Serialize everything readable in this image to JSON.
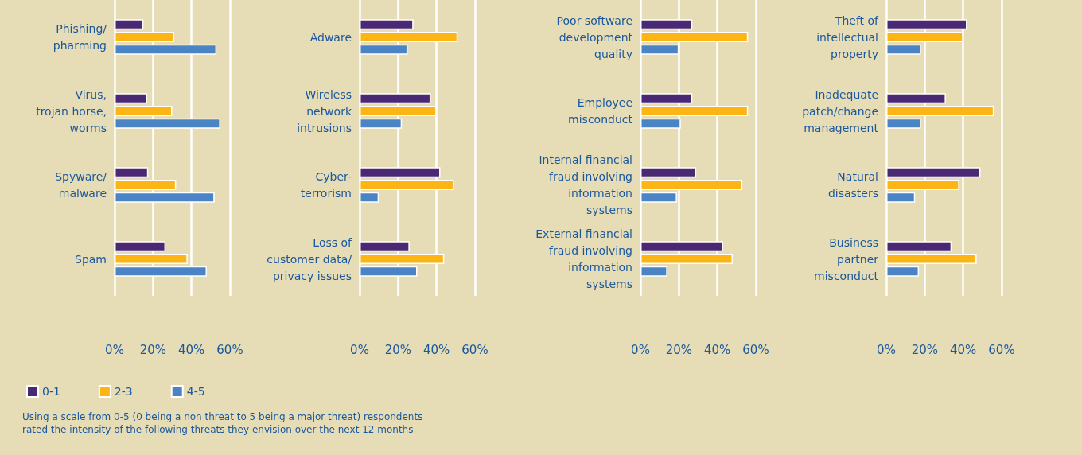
{
  "chart_data": [
    {
      "type": "bar",
      "orientation": "horizontal",
      "categories": [
        "Phishing/\npharming",
        "Virus,\ntrojan horse,\nworms",
        "Spyware/\nmalware",
        "Spam"
      ],
      "series": [
        {
          "name": "0-1",
          "color": "#4b2873",
          "values": [
            15,
            17,
            17.5,
            26.5
          ]
        },
        {
          "name": "2-3",
          "color": "#fdb515",
          "values": [
            31,
            30,
            32,
            38
          ]
        },
        {
          "name": "4-5",
          "color": "#4a84c4",
          "values": [
            53,
            55,
            52,
            48
          ]
        }
      ],
      "xlim": [
        0,
        60
      ],
      "xticks": [
        {
          "value": 0,
          "label": "0%"
        },
        {
          "value": 20,
          "label": "20%"
        },
        {
          "value": 40,
          "label": "40%"
        },
        {
          "value": 60,
          "label": "60%"
        }
      ],
      "grid": "x",
      "legend": "bottom left",
      "annotations": [
        "Using a scale from 0-5 (0 being a non threat to 5 being a major threat) respondents rated the intensity of the following threats they envision over the next 12 months"
      ]
    },
    {
      "type": "bar",
      "orientation": "horizontal",
      "categories": [
        "Adware",
        "Wireless\nnetwork\nintrusions",
        "Cyber-\nterrorism",
        "Loss of\ncustomer data/\nprivacy issues"
      ],
      "series": [
        {
          "color": "#4b2873",
          "values": [
            28,
            37,
            42,
            26
          ]
        },
        {
          "color": "#fdb515",
          "values": [
            51,
            40,
            49,
            44
          ]
        },
        {
          "color": "#4a84c4",
          "values": [
            25,
            22,
            10,
            30
          ]
        }
      ],
      "xlim": [
        0,
        60
      ],
      "xticks": [
        {
          "value": 0,
          "label": "0%"
        },
        {
          "value": 20,
          "label": "20%"
        },
        {
          "value": 40,
          "label": "40%"
        },
        {
          "value": 60,
          "label": "60%"
        }
      ],
      "grid": "x"
    },
    {
      "type": "bar",
      "orientation": "horizontal",
      "categories": [
        "Poor software\ndevelopment\nquality",
        "Employee\nmisconduct",
        "Internal financial\nfraud involving\ninformation\nsystems",
        "External financial\nfraud involving\ninformation\nsystems"
      ],
      "series": [
        {
          "color": "#4b2873",
          "values": [
            27,
            27,
            29,
            43
          ]
        },
        {
          "color": "#fdb515",
          "values": [
            56,
            56,
            53,
            48
          ]
        },
        {
          "color": "#4a84c4",
          "values": [
            20,
            21,
            19,
            14
          ]
        }
      ],
      "xlim": [
        0,
        60
      ],
      "xticks": [
        {
          "value": 0,
          "label": "0%"
        },
        {
          "value": 20,
          "label": "20%"
        },
        {
          "value": 40,
          "label": "40%"
        },
        {
          "value": 60,
          "label": "60%"
        }
      ],
      "grid": "x"
    },
    {
      "type": "bar",
      "orientation": "horizontal",
      "categories": [
        "Theft of\nintellectual\nproperty",
        "Inadequate\npatch/change\nmanagement",
        "Natural\ndisasters",
        "Business\npartner\nmisconduct"
      ],
      "series": [
        {
          "color": "#4b2873",
          "values": [
            42,
            31,
            49,
            34
          ]
        },
        {
          "color": "#fdb515",
          "values": [
            40,
            56,
            38,
            47
          ]
        },
        {
          "color": "#4a84c4",
          "values": [
            18,
            18,
            15,
            17
          ]
        }
      ],
      "xlim": [
        0,
        60
      ],
      "xticks": [
        {
          "value": 0,
          "label": "0%"
        },
        {
          "value": 20,
          "label": "20%"
        },
        {
          "value": 40,
          "label": "40%"
        },
        {
          "value": 60,
          "label": "60%"
        }
      ],
      "grid": "x"
    }
  ]
}
